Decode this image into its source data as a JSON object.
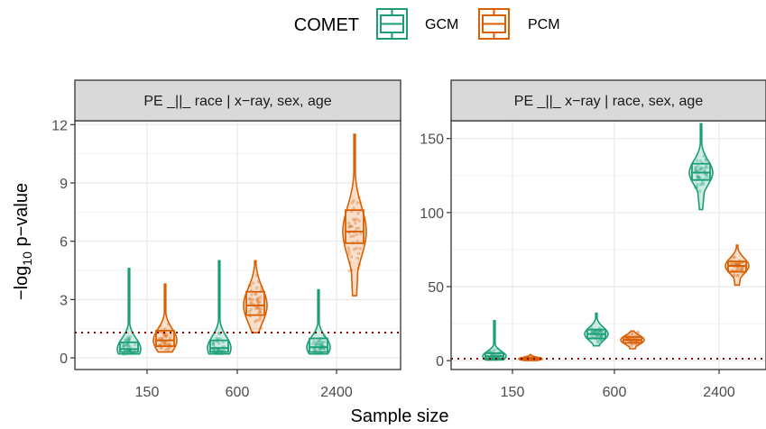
{
  "legend": {
    "title": "COMET",
    "items": [
      {
        "label": "GCM",
        "color": "#1B9E77"
      },
      {
        "label": "PCM",
        "color": "#D95F02"
      }
    ]
  },
  "threshold_color": "#8B0000",
  "chart_data": [
    {
      "type": "violin",
      "strip_title": "PE _||_ race | x−ray, sex, age",
      "xlabel": "Sample size",
      "ylabel_prefix": "−log",
      "ylabel_sub": "10",
      "ylabel_suffix": " p−value",
      "categories": [
        "150",
        "600",
        "2400"
      ],
      "ylim": [
        -0.6,
        12.2
      ],
      "yticks": [
        0,
        3,
        6,
        9,
        12
      ],
      "threshold": 1.3,
      "grid": true,
      "series": [
        {
          "name": "GCM",
          "color": "#1B9E77",
          "dists": [
            {
              "min": 0.2,
              "q1": 0.3,
              "median": 0.45,
              "q3": 0.8,
              "max": 4.6
            },
            {
              "min": 0.2,
              "q1": 0.3,
              "median": 0.5,
              "q3": 0.9,
              "max": 5.0
            },
            {
              "min": 0.2,
              "q1": 0.3,
              "median": 0.55,
              "q3": 1.0,
              "max": 3.5
            }
          ]
        },
        {
          "name": "PCM",
          "color": "#D95F02",
          "dists": [
            {
              "min": 0.3,
              "q1": 0.6,
              "median": 0.9,
              "q3": 1.4,
              "max": 3.8
            },
            {
              "min": 1.3,
              "q1": 2.2,
              "median": 2.7,
              "q3": 3.4,
              "max": 5.0
            },
            {
              "min": 3.2,
              "q1": 5.9,
              "median": 6.5,
              "q3": 7.6,
              "max": 11.5
            }
          ]
        }
      ]
    },
    {
      "type": "violin",
      "strip_title": "PE _||_ x−ray | race, sex, age",
      "xlabel": "Sample size",
      "categories": [
        "150",
        "600",
        "2400"
      ],
      "ylim": [
        -6,
        162
      ],
      "yticks": [
        0,
        50,
        100,
        150
      ],
      "threshold": 1.3,
      "grid": true,
      "series": [
        {
          "name": "GCM",
          "color": "#1B9E77",
          "dists": [
            {
              "min": 0.5,
              "q1": 1.5,
              "median": 3,
              "q3": 5,
              "max": 27
            },
            {
              "min": 10,
              "q1": 15,
              "median": 18,
              "q3": 21,
              "max": 32
            },
            {
              "min": 102,
              "q1": 122,
              "median": 127,
              "q3": 133,
              "max": 160
            }
          ]
        },
        {
          "name": "PCM",
          "color": "#D95F02",
          "dists": [
            {
              "min": 0.2,
              "q1": 0.6,
              "median": 1.2,
              "q3": 2,
              "max": 4
            },
            {
              "min": 8,
              "q1": 12,
              "median": 14,
              "q3": 16,
              "max": 20
            },
            {
              "min": 51,
              "q1": 60,
              "median": 64,
              "q3": 67,
              "max": 78
            }
          ]
        }
      ]
    }
  ]
}
